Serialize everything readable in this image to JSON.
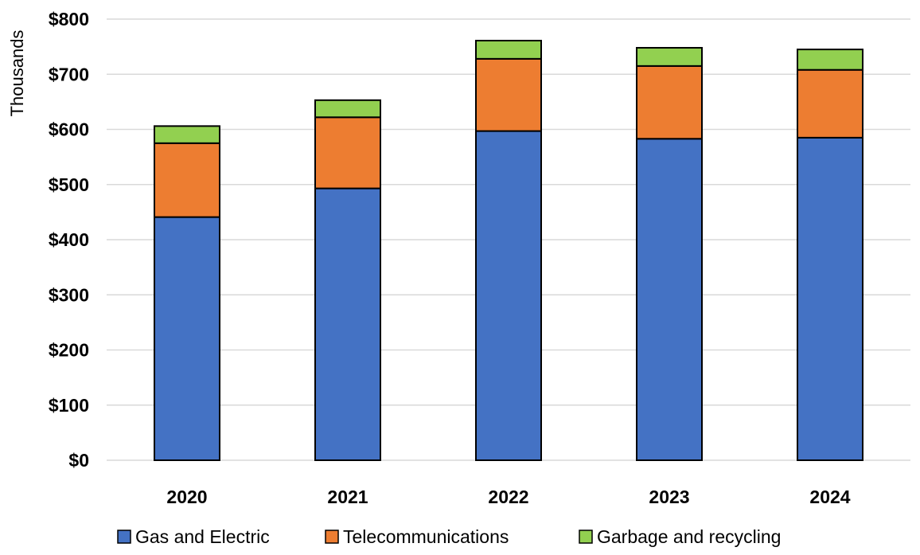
{
  "chart_data": {
    "type": "bar",
    "stacked": true,
    "categories": [
      "2020",
      "2021",
      "2022",
      "2023",
      "2024"
    ],
    "series": [
      {
        "name": "Gas and Electric",
        "color": "#4472c4",
        "values": [
          441,
          493,
          597,
          583,
          585
        ]
      },
      {
        "name": "Telecommunications",
        "color": "#ed7d31",
        "values": [
          134,
          129,
          131,
          132,
          123
        ]
      },
      {
        "name": "Garbage and recycling",
        "color": "#92d050",
        "values": [
          31,
          31,
          33,
          33,
          37
        ]
      }
    ],
    "ylabel": "Thousands",
    "ylim": [
      0,
      800
    ],
    "yticks": [
      {
        "value": 0,
        "label": "$0"
      },
      {
        "value": 100,
        "label": "$100"
      },
      {
        "value": 200,
        "label": "$200"
      },
      {
        "value": 300,
        "label": "$300"
      },
      {
        "value": 400,
        "label": "$400"
      },
      {
        "value": 500,
        "label": "$500"
      },
      {
        "value": 600,
        "label": "$600"
      },
      {
        "value": 700,
        "label": "$700"
      },
      {
        "value": 800,
        "label": "$800"
      }
    ],
    "grid": true,
    "legend_position": "bottom"
  }
}
